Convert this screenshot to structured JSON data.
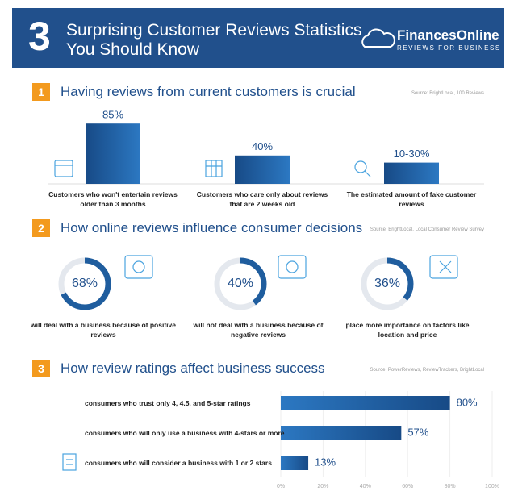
{
  "header": {
    "number": "3",
    "title_lines": [
      "Surprising Customer Reviews Statistics",
      "You Should Know"
    ],
    "brand": "FinancesOnline",
    "tagline": "REVIEWS FOR BUSINESS"
  },
  "chart_data": [
    {
      "type": "bar",
      "number": "1",
      "title": "Having reviews from current customers is crucial",
      "source": "Source: BrightLocal, 100 Reviews",
      "categories": [
        "Customers who won't entertain reviews older than 3 months",
        "Customers who care only about reviews that are 2 weeks old",
        "The estimated amount of fake customer  reviews"
      ],
      "values": [
        85,
        40,
        30
      ],
      "value_labels": [
        "85%",
        "40%",
        "10-30%"
      ],
      "color": "#1f5d9e"
    },
    {
      "type": "donut",
      "number": "2",
      "title": "How online reviews influence consumer decisions",
      "source": "Source: BrightLocal, Local Consumer Review Survey",
      "categories": [
        "will deal with a business because of positive reviews",
        "will not deal with a business because of negative reviews",
        "place more importance on factors like location and price"
      ],
      "values": [
        68,
        40,
        36
      ],
      "value_labels": [
        "68%",
        "40%",
        "36%"
      ],
      "color": "#1f5d9e"
    },
    {
      "type": "barh",
      "number": "3",
      "title": "How review ratings affect business success",
      "source": "Source: PowerReviews, ReviewTrackers, BrightLocal",
      "categories": [
        "consumers who trust only 4, 4.5, and 5-star ratings",
        "consumers who will only use a business with 4-stars or more",
        "consumers who will consider a business with 1 or 2 stars"
      ],
      "values": [
        80,
        57,
        13
      ],
      "value_labels": [
        "80%",
        "57%",
        "13%"
      ],
      "color": "#1f5d9e",
      "xlim": [
        0,
        100
      ],
      "xticks": [
        {
          "value": 0,
          "label": "0%"
        },
        {
          "value": 20,
          "label": "20%"
        },
        {
          "value": 40,
          "label": "40%"
        },
        {
          "value": 60,
          "label": "60%"
        },
        {
          "value": 80,
          "label": "80%"
        },
        {
          "value": 100,
          "label": "100%"
        }
      ],
      "grid": true
    }
  ]
}
